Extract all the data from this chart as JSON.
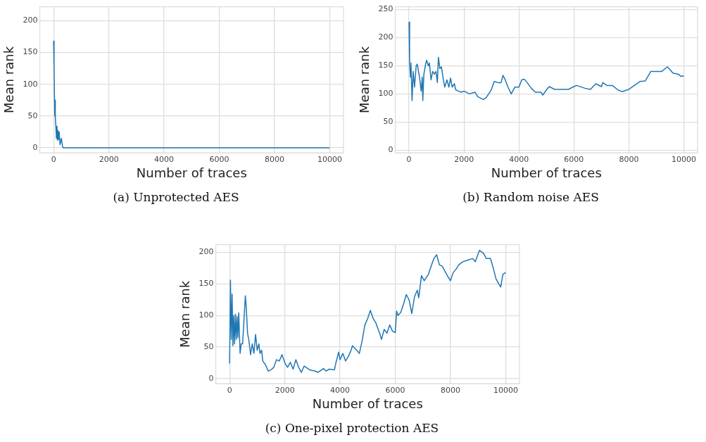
{
  "chart_data": [
    {
      "type": "line",
      "title": "(a)  Unprotected AES",
      "xlabel": "Number of traces",
      "ylabel": "Mean rank",
      "xlim": [
        -500,
        10500
      ],
      "ylim": [
        -8,
        222
      ],
      "xticks": [
        0,
        2000,
        4000,
        6000,
        8000,
        10000
      ],
      "yticks": [
        0,
        50,
        100,
        150,
        200
      ],
      "grid": true,
      "legend": false,
      "marker": "none",
      "line_style": "solid",
      "series": [
        {
          "color": "#1f77b4",
          "x": [
            0,
            10,
            20,
            40,
            50,
            60,
            80,
            100,
            120,
            140,
            160,
            180,
            200,
            230,
            280,
            320,
            350,
            10000
          ],
          "values": [
            168,
            124,
            125,
            50,
            75,
            48,
            35,
            15,
            34,
            12,
            27,
            13,
            25,
            5,
            15,
            2,
            0,
            0
          ]
        }
      ]
    },
    {
      "type": "line",
      "title": "(b)  Random noise AES",
      "xlabel": "Number of traces",
      "ylabel": "Mean rank",
      "xlim": [
        -500,
        10500
      ],
      "ylim": [
        -5,
        255
      ],
      "xticks": [
        0,
        2000,
        4000,
        6000,
        8000,
        10000
      ],
      "yticks": [
        0,
        50,
        100,
        150,
        200,
        250
      ],
      "grid": true,
      "legend": false,
      "marker": "none",
      "line_style": "solid",
      "series": [
        {
          "color": "#1f77b4",
          "x": [
            0,
            20,
            50,
            70,
            110,
            150,
            200,
            260,
            300,
            380,
            440,
            480,
            500,
            540,
            600,
            640,
            700,
            740,
            800,
            860,
            920,
            980,
            1030,
            1070,
            1120,
            1180,
            1250,
            1300,
            1380,
            1450,
            1510,
            1570,
            1650,
            1700,
            1800,
            1900,
            2000,
            2200,
            2400,
            2500,
            2700,
            2800,
            2900,
            3000,
            3100,
            3250,
            3350,
            3420,
            3500,
            3600,
            3720,
            3850,
            4000,
            4100,
            4200,
            4300,
            4450,
            4600,
            4800,
            4870,
            5000,
            5100,
            5300,
            5600,
            5800,
            6000,
            6100,
            6400,
            6600,
            6800,
            7000,
            7050,
            7200,
            7400,
            7600,
            7750,
            8000,
            8200,
            8400,
            8600,
            8800,
            9000,
            9200,
            9400,
            9500,
            9600,
            9800,
            9900,
            10000
          ],
          "values": [
            228,
            155,
            130,
            155,
            88,
            140,
            112,
            150,
            153,
            130,
            105,
            130,
            88,
            135,
            152,
            160,
            150,
            155,
            125,
            140,
            135,
            140,
            120,
            165,
            145,
            148,
            125,
            112,
            125,
            112,
            128,
            112,
            118,
            107,
            105,
            103,
            105,
            100,
            103,
            95,
            90,
            93,
            100,
            108,
            122,
            120,
            120,
            133,
            125,
            112,
            100,
            112,
            112,
            125,
            126,
            120,
            110,
            103,
            103,
            98,
            107,
            113,
            108,
            108,
            108,
            113,
            115,
            110,
            108,
            118,
            113,
            120,
            115,
            115,
            107,
            104,
            108,
            115,
            122,
            123,
            140,
            140,
            140,
            148,
            143,
            137,
            135,
            131,
            132
          ]
        }
      ]
    },
    {
      "type": "line",
      "title": "(c)  One-pixel protection AES",
      "xlabel": "Number of traces",
      "ylabel": "Mean rank",
      "xlim": [
        -500,
        10500
      ],
      "ylim": [
        -8,
        212
      ],
      "xticks": [
        0,
        2000,
        4000,
        6000,
        8000,
        10000
      ],
      "yticks": [
        0,
        50,
        100,
        150,
        200
      ],
      "grid": true,
      "legend": false,
      "marker": "none",
      "line_style": "solid",
      "series": [
        {
          "color": "#1f77b4",
          "x": [
            0,
            30,
            60,
            90,
            120,
            150,
            180,
            210,
            240,
            270,
            300,
            330,
            380,
            420,
            470,
            510,
            570,
            600,
            650,
            700,
            760,
            820,
            880,
            940,
            1000,
            1060,
            1100,
            1160,
            1200,
            1300,
            1400,
            1500,
            1600,
            1700,
            1800,
            1900,
            2000,
            2100,
            2200,
            2300,
            2400,
            2500,
            2600,
            2700,
            2900,
            3100,
            3200,
            3400,
            3500,
            3600,
            3800,
            3850,
            3950,
            4000,
            4100,
            4200,
            4300,
            4400,
            4450,
            4600,
            4700,
            4800,
            4900,
            5000,
            5100,
            5200,
            5300,
            5450,
            5500,
            5600,
            5700,
            5800,
            5900,
            6000,
            6050,
            6100,
            6200,
            6300,
            6400,
            6500,
            6600,
            6700,
            6800,
            6850,
            6950,
            7050,
            7200,
            7300,
            7400,
            7500,
            7600,
            7700,
            7800,
            7900,
            8000,
            8100,
            8200,
            8300,
            8450,
            8600,
            8800,
            8900,
            9050,
            9200,
            9300,
            9450,
            9550,
            9650,
            9750,
            9820,
            9900,
            10000
          ],
          "values": [
            24,
            156,
            62,
            134,
            52,
            100,
            55,
            102,
            62,
            98,
            65,
            104,
            40,
            55,
            55,
            85,
            131,
            115,
            72,
            60,
            38,
            55,
            40,
            70,
            45,
            55,
            40,
            45,
            28,
            22,
            12,
            14,
            18,
            30,
            28,
            38,
            25,
            18,
            26,
            15,
            30,
            18,
            10,
            20,
            14,
            12,
            10,
            16,
            12,
            15,
            14,
            25,
            42,
            30,
            40,
            28,
            35,
            45,
            52,
            45,
            40,
            60,
            85,
            95,
            108,
            95,
            88,
            70,
            62,
            78,
            72,
            85,
            75,
            73,
            107,
            100,
            105,
            118,
            133,
            125,
            103,
            130,
            140,
            128,
            163,
            155,
            165,
            178,
            190,
            196,
            180,
            178,
            170,
            162,
            155,
            168,
            173,
            180,
            185,
            187,
            190,
            185,
            203,
            198,
            190,
            190,
            175,
            158,
            150,
            145,
            165,
            168
          ]
        }
      ]
    }
  ]
}
